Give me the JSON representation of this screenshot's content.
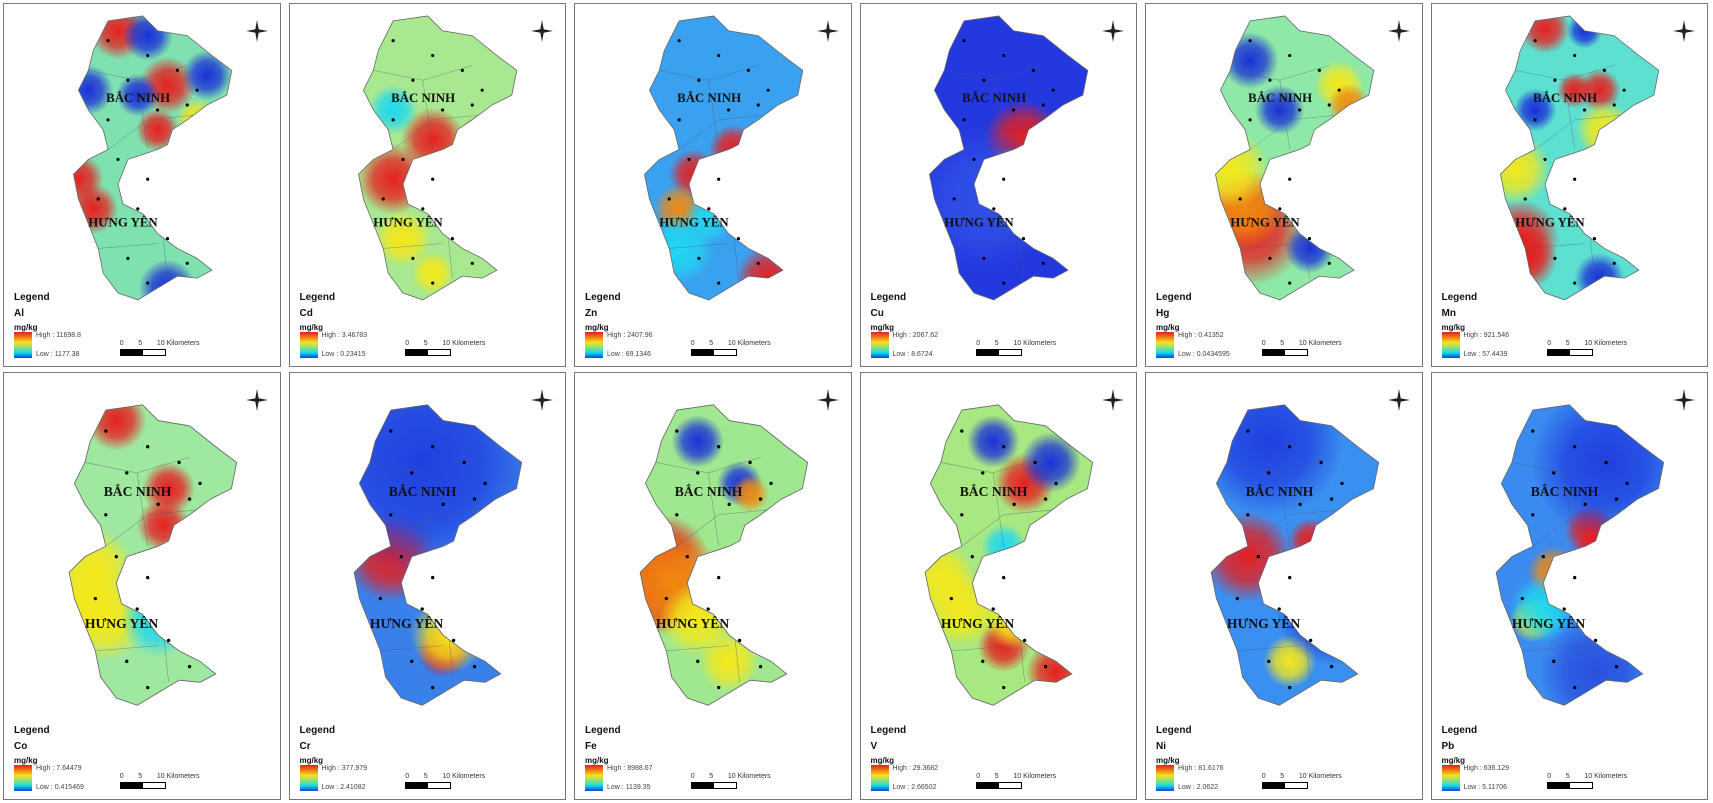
{
  "legend_title": "Legend",
  "unit": "mg/kg",
  "high_prefix": "High : ",
  "low_prefix": "Low : ",
  "scale": {
    "zero": "0",
    "five": "5",
    "ten": "10 Kilometers"
  },
  "place_labels": [
    "BẮC NINH",
    "HƯNG YÊN"
  ],
  "color_ramp": [
    "#e02020",
    "#f07a10",
    "#f5e020",
    "#8ee07a",
    "#10d8e8",
    "#1040e0"
  ],
  "panels": [
    {
      "element": "Al",
      "high": "11698.8",
      "low": "1177.38",
      "base_color": "#7fe0b0"
    },
    {
      "element": "Cd",
      "high": "3.46783",
      "low": "0.23415",
      "base_color": "#a8e890"
    },
    {
      "element": "Zn",
      "high": "2407.96",
      "low": "69.1346",
      "base_color": "#3aa0f0"
    },
    {
      "element": "Cu",
      "high": "2067.62",
      "low": "8.6724",
      "base_color": "#2438e0"
    },
    {
      "element": "Hg",
      "high": "0.41352",
      "low": "0.0434595",
      "base_color": "#8ee8a8"
    },
    {
      "element": "Mn",
      "high": "921.546",
      "low": "57.4439",
      "base_color": "#5ee0d0"
    },
    {
      "element": "Co",
      "high": "7.64479",
      "low": "0.415469",
      "base_color": "#9ee8a0"
    },
    {
      "element": "Cr",
      "high": "377.979",
      "low": "2.41082",
      "base_color": "#3a80ea"
    },
    {
      "element": "Fe",
      "high": "8988.67",
      "low": "1139.35",
      "base_color": "#a0e890"
    },
    {
      "element": "V",
      "high": "29.3682",
      "low": "2.66502",
      "base_color": "#a8e880"
    },
    {
      "element": "Ni",
      "high": "81.6176",
      "low": "2.0622",
      "base_color": "#3a90f0"
    },
    {
      "element": "Pb",
      "high": "636.129",
      "low": "5.11706",
      "base_color": "#3a8af0"
    }
  ]
}
